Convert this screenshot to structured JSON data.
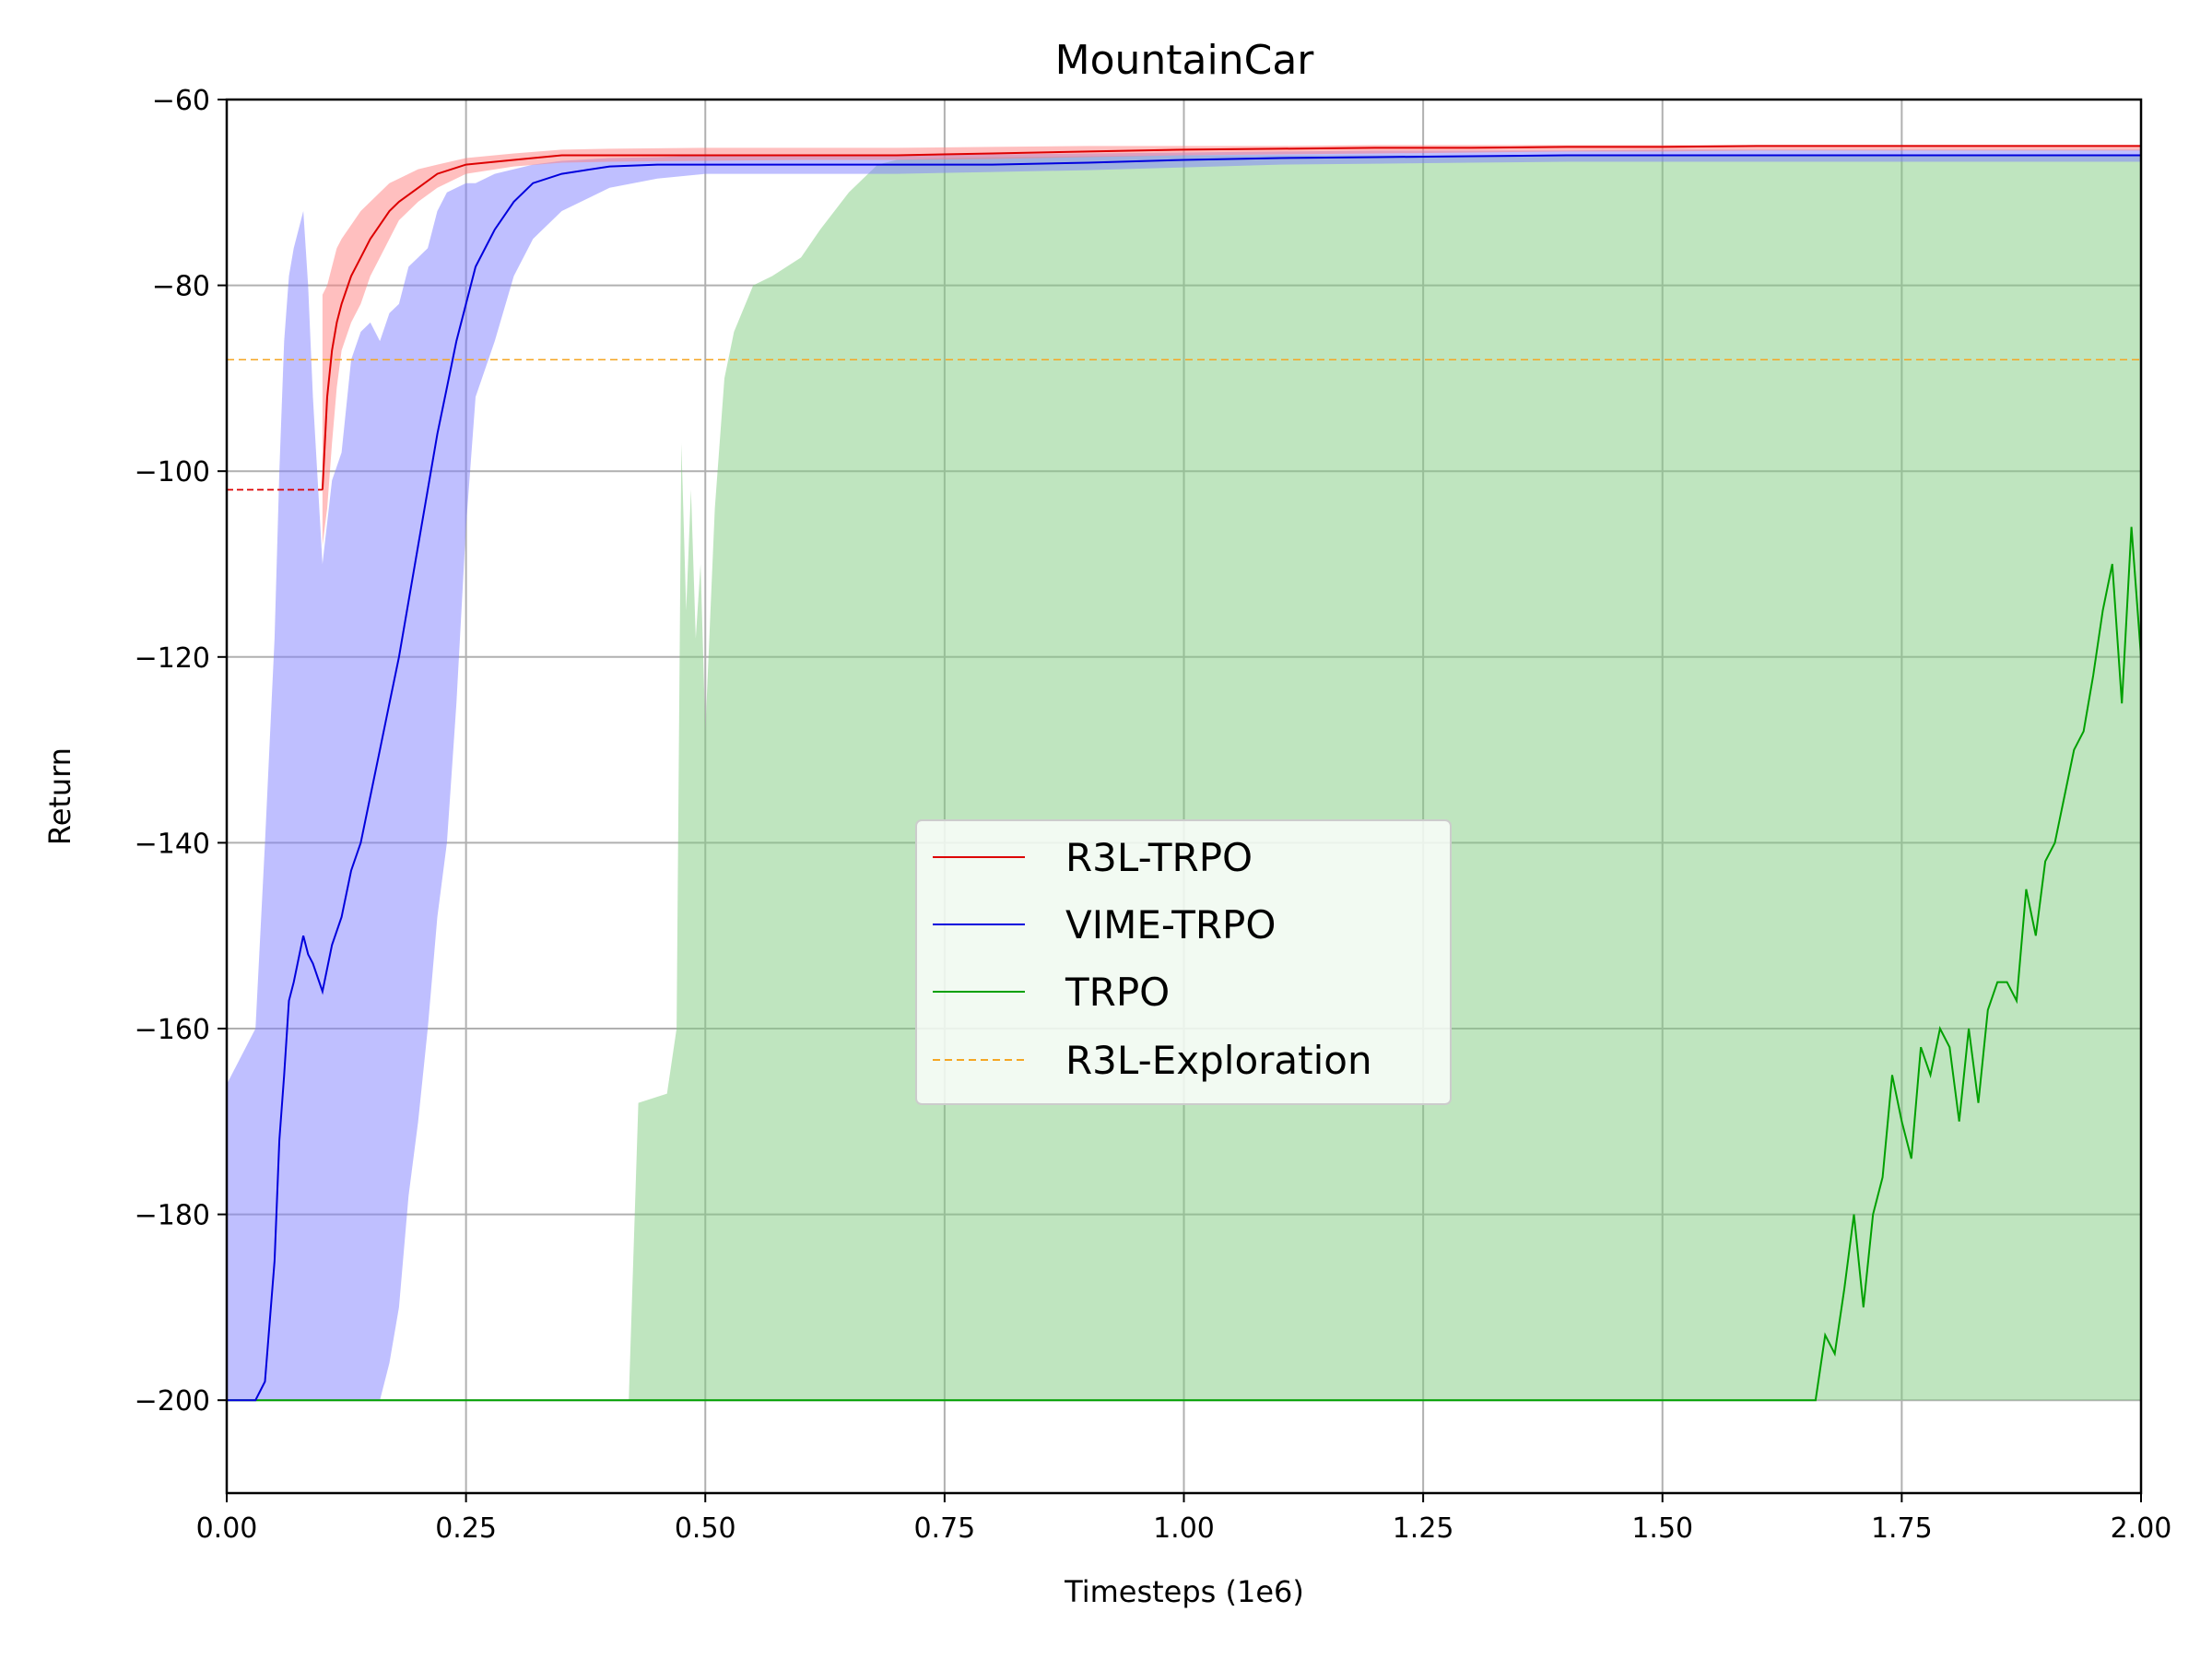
{
  "chart_data": {
    "type": "line",
    "title": "MountainCar",
    "xlabel": "Timesteps (1e6)",
    "ylabel": "Return",
    "xlim": [
      0,
      2.0
    ],
    "ylim": [
      -210,
      -60
    ],
    "xticks": [
      0,
      0.25,
      0.5,
      0.75,
      1.0,
      1.25,
      1.5,
      1.75,
      2.0
    ],
    "xtick_labels": [
      "0.00",
      "0.25",
      "0.50",
      "0.75",
      "1.00",
      "1.25",
      "1.50",
      "1.75",
      "2.00"
    ],
    "yticks": [
      -200,
      -180,
      -160,
      -140,
      -120,
      -100,
      -80,
      -60
    ],
    "ytick_labels": [
      "−200",
      "−180",
      "−160",
      "−140",
      "−120",
      "−100",
      "−80",
      "−60"
    ],
    "grid": true,
    "legend_position": "center",
    "series": [
      {
        "name": "R3L-TRPO",
        "color": "#dd0000",
        "band_color": "#ff8080",
        "pre_x": [
          0,
          0.1
        ],
        "pre_y": -102,
        "x": [
          0.1,
          0.105,
          0.11,
          0.115,
          0.12,
          0.13,
          0.14,
          0.15,
          0.16,
          0.17,
          0.18,
          0.2,
          0.22,
          0.25,
          0.3,
          0.35,
          0.4,
          0.5,
          0.6,
          0.7,
          0.8,
          0.9,
          1.0,
          1.1,
          1.2,
          1.3,
          1.4,
          1.5,
          1.6,
          1.7,
          1.8,
          1.9,
          2.0
        ],
        "y": [
          -102,
          -92,
          -87,
          -84,
          -82,
          -79,
          -77,
          -75,
          -73.5,
          -72,
          -71,
          -69.5,
          -68,
          -67,
          -66.5,
          -66,
          -66,
          -66,
          -66,
          -66,
          -65.8,
          -65.6,
          -65.4,
          -65.3,
          -65.2,
          -65.2,
          -65.1,
          -65.1,
          -65,
          -65,
          -65,
          -65,
          -65
        ],
        "upper": [
          -81,
          -80,
          -78,
          -76,
          -75,
          -73.5,
          -72,
          -71,
          -70,
          -69,
          -68.5,
          -67.5,
          -67,
          -66.3,
          -65.8,
          -65.4,
          -65.3,
          -65.2,
          -65.2,
          -65.2,
          -65.1,
          -65,
          -65,
          -65,
          -64.9,
          -64.9,
          -64.9,
          -64.9,
          -64.9,
          -64.9,
          -64.9,
          -64.9,
          -64.9
        ],
        "lower": [
          -108,
          -104,
          -97,
          -91,
          -87,
          -84,
          -82,
          -79,
          -77,
          -75,
          -73,
          -71,
          -69.5,
          -68,
          -67.2,
          -66.8,
          -66.7,
          -66.6,
          -66.5,
          -66.5,
          -66.4,
          -66.2,
          -66,
          -65.9,
          -65.8,
          -65.7,
          -65.6,
          -65.6,
          -65.5,
          -65.5,
          -65.5,
          -65.5,
          -65.5
        ]
      },
      {
        "name": "VIME-TRPO",
        "color": "#0000dd",
        "band_color": "#8080ff",
        "x": [
          0.0,
          0.03,
          0.04,
          0.05,
          0.055,
          0.06,
          0.065,
          0.07,
          0.08,
          0.085,
          0.09,
          0.1,
          0.11,
          0.12,
          0.13,
          0.14,
          0.15,
          0.16,
          0.17,
          0.18,
          0.19,
          0.2,
          0.21,
          0.22,
          0.23,
          0.24,
          0.25,
          0.26,
          0.28,
          0.3,
          0.32,
          0.35,
          0.4,
          0.45,
          0.5,
          0.6,
          0.7,
          0.8,
          0.9,
          1.0,
          1.1,
          1.2,
          1.3,
          1.4,
          1.5,
          1.6,
          1.7,
          1.8,
          1.9,
          2.0
        ],
        "y": [
          -200,
          -200,
          -198,
          -185,
          -172,
          -165,
          -157,
          -155,
          -150,
          -152,
          -153,
          -156,
          -151,
          -148,
          -143,
          -140,
          -135,
          -130,
          -125,
          -120,
          -114,
          -108,
          -102,
          -96,
          -91,
          -86,
          -82,
          -78,
          -74,
          -71,
          -69,
          -68,
          -67.2,
          -67,
          -67,
          -67,
          -67,
          -67,
          -66.8,
          -66.5,
          -66.3,
          -66.2,
          -66.1,
          -66,
          -66,
          -66,
          -66,
          -66,
          -66,
          -66
        ],
        "upper": [
          -166,
          -160,
          -140,
          -118,
          -100,
          -86,
          -79,
          -76,
          -72,
          -80,
          -92,
          -110,
          -101,
          -98,
          -88,
          -85,
          -84,
          -86,
          -83,
          -82,
          -78,
          -77,
          -76,
          -72,
          -70,
          -69.5,
          -69,
          -69,
          -68,
          -67.5,
          -67,
          -66.6,
          -66.3,
          -66.2,
          -66,
          -66,
          -66,
          -65.9,
          -65.8,
          -65.7,
          -65.6,
          -65.5,
          -65.5,
          -65.5,
          -65.4,
          -65.4,
          -65.4,
          -65.4,
          -65.4,
          -65.4
        ],
        "lower": [
          -200,
          -200,
          -200,
          -200,
          -200,
          -200,
          -200,
          -200,
          -200,
          -200,
          -200,
          -200,
          -200,
          -200,
          -200,
          -200,
          -200,
          -200,
          -196,
          -190,
          -178,
          -170,
          -160,
          -148,
          -140,
          -125,
          -106,
          -92,
          -86,
          -79,
          -75,
          -72,
          -69.5,
          -68.5,
          -68,
          -68,
          -68,
          -67.8,
          -67.6,
          -67.3,
          -67,
          -66.9,
          -66.8,
          -66.7,
          -66.7,
          -66.7,
          -66.7,
          -66.7,
          -66.7,
          -66.7
        ]
      },
      {
        "name": "TRPO",
        "color": "#00a000",
        "band_color": "#80cc80",
        "x": [
          0.0,
          1.66,
          1.67,
          1.68,
          1.69,
          1.7,
          1.71,
          1.72,
          1.73,
          1.74,
          1.75,
          1.76,
          1.77,
          1.78,
          1.79,
          1.8,
          1.81,
          1.82,
          1.83,
          1.84,
          1.85,
          1.86,
          1.87,
          1.88,
          1.89,
          1.9,
          1.91,
          1.92,
          1.93,
          1.94,
          1.95,
          1.96,
          1.97,
          1.98,
          1.99,
          2.0
        ],
        "y": [
          -200,
          -200,
          -193,
          -195,
          -188,
          -180,
          -190,
          -180,
          -176,
          -165,
          -170,
          -174,
          -162,
          -165,
          -160,
          -162,
          -170,
          -160,
          -168,
          -158,
          -155,
          -155,
          -157,
          -145,
          -150,
          -142,
          -140,
          -135,
          -130,
          -128,
          -122,
          -115,
          -110,
          -125,
          -106,
          -120
        ],
        "upper": [
          -200,
          -200,
          -67,
          -67,
          -67,
          -67,
          -67,
          -67,
          -67,
          -67,
          -67,
          -67,
          -67,
          -67,
          -67,
          -67,
          -67,
          -67,
          -67,
          -67,
          -67,
          -67,
          -67,
          -67,
          -67,
          -67,
          -67,
          -67,
          -67,
          -67,
          -67,
          -67,
          -67,
          -67,
          -67,
          -67
        ],
        "lower": [
          -200,
          -200,
          -200,
          -200,
          -200,
          -200,
          -200,
          -200,
          -200,
          -200,
          -200,
          -200,
          -200,
          -200,
          -200,
          -200,
          -200,
          -200,
          -200,
          -200,
          -200,
          -200,
          -200,
          -200,
          -200,
          -200,
          -200,
          -200,
          -200,
          -200,
          -200,
          -200,
          -200,
          -200,
          -200,
          -200
        ],
        "band_x": [
          0.42,
          0.43,
          0.46,
          0.47,
          0.475,
          0.48,
          0.485,
          0.49,
          0.495,
          0.5,
          0.51,
          0.52,
          0.53,
          0.55,
          0.57,
          0.6,
          0.62,
          0.65,
          0.68,
          0.7,
          0.75,
          0.8,
          0.9,
          1.0,
          1.2,
          1.4,
          1.6,
          1.8,
          2.0
        ],
        "band_upper": [
          -200,
          -168,
          -167,
          -160,
          -97,
          -115,
          -102,
          -118,
          -110,
          -128,
          -104,
          -90,
          -85,
          -80,
          -79,
          -77,
          -74,
          -70,
          -67,
          -66.5,
          -66.3,
          -66.2,
          -66.1,
          -66,
          -66,
          -66,
          -66,
          -66,
          -66
        ]
      },
      {
        "name": "R3L-Exploration",
        "color": "#f5a623",
        "dashed": true,
        "y": -88
      }
    ]
  }
}
